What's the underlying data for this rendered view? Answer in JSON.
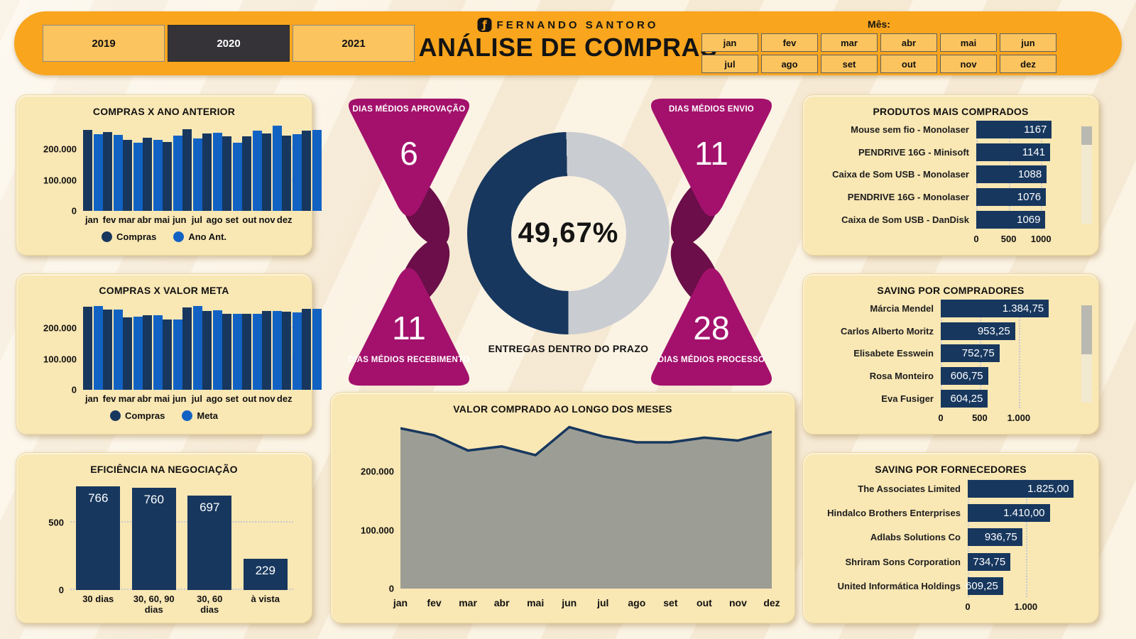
{
  "header": {
    "brand": "FERNANDO SANTORO",
    "brand_icon": "ƒ",
    "title": "ANÁLISE DE COMPRAS",
    "years": [
      {
        "label": "2019",
        "selected": false
      },
      {
        "label": "2020",
        "selected": true
      },
      {
        "label": "2021",
        "selected": false
      }
    ],
    "month_label": "Mês:",
    "months": [
      "jan",
      "fev",
      "mar",
      "abr",
      "mai",
      "jun",
      "jul",
      "ago",
      "set",
      "out",
      "nov",
      "dez"
    ]
  },
  "kpis": {
    "aprovacao": {
      "label": "DIAS MÉDIOS APROVAÇÃO",
      "value": "6"
    },
    "envio": {
      "label": "DIAS MÉDIOS ENVIO",
      "value": "11"
    },
    "recebimento": {
      "label": "DIAS MÉDIOS RECEBIMENTO",
      "value": "11"
    },
    "processo": {
      "label": "DIAS MÉDIOS PROCESSO",
      "value": "28"
    },
    "donut": {
      "value_label": "49,67%",
      "percent": 49.67,
      "caption": "ENTREGAS DENTRO DO PRAZO"
    }
  },
  "colors": {
    "navy": "#17375E",
    "blue": "#1262C4",
    "magenta": "#A3116C",
    "maroon": "#6B0E49",
    "orange": "#F9A51D",
    "button_orange": "#FCC45F",
    "selected_dark": "#353338",
    "panel_bg": "#F9E7B4",
    "page_bg": "#FAF0DD",
    "donut_gray": "#C9CCD1",
    "area_fill": "#9C9D94",
    "grid_dot": "#C5CAD3"
  },
  "chart_data": [
    {
      "el": "chart-ano-anterior",
      "type": "bar",
      "title": "COMPRAS X ANO ANTERIOR",
      "categories": [
        "jan",
        "fev",
        "mar",
        "abr",
        "mai",
        "jun",
        "jul",
        "ago",
        "set",
        "out",
        "nov",
        "dez"
      ],
      "series": [
        {
          "name": "Compras",
          "color": "navy",
          "values": [
            263000,
            256000,
            230000,
            237000,
            223000,
            265000,
            250000,
            241000,
            241000,
            250000,
            244000,
            259000
          ]
        },
        {
          "name": "Ano Ant.",
          "color": "blue",
          "values": [
            248000,
            245000,
            220000,
            230000,
            243000,
            235000,
            253000,
            220000,
            260000,
            275000,
            249000,
            262000
          ]
        }
      ],
      "ylim": [
        0,
        285000
      ],
      "grid": true,
      "legend_position": "bottom",
      "yticks": [
        {
          "v": 0,
          "label": "0"
        },
        {
          "v": 100000,
          "label": "100.000"
        },
        {
          "v": 200000,
          "label": "200.000"
        }
      ]
    },
    {
      "el": "chart-valor-meta",
      "type": "bar",
      "title": "COMPRAS X VALOR META",
      "categories": [
        "jan",
        "fev",
        "mar",
        "abr",
        "mai",
        "jun",
        "jul",
        "ago",
        "set",
        "out",
        "nov",
        "dez"
      ],
      "series": [
        {
          "name": "Compras",
          "color": "navy",
          "values": [
            270000,
            259000,
            235000,
            241000,
            227000,
            267000,
            255000,
            247000,
            246000,
            256000,
            252000,
            263000
          ]
        },
        {
          "name": "Meta",
          "color": "blue",
          "values": [
            272000,
            260000,
            237000,
            242000,
            227000,
            271000,
            257000,
            247000,
            246000,
            256000,
            250000,
            263000
          ]
        }
      ],
      "ylim": [
        0,
        285000
      ],
      "grid": true,
      "legend_position": "bottom",
      "yticks": [
        {
          "v": 0,
          "label": "0"
        },
        {
          "v": 100000,
          "label": "100.000"
        },
        {
          "v": 200000,
          "label": "200.000"
        }
      ]
    },
    {
      "el": "chart-eficiencia",
      "type": "bar",
      "title": "EFICIÊNCIA NA NEGOCIAÇÃO",
      "categories": [
        "30 dias",
        "30, 60, 90 dias",
        "30, 60 dias",
        "à vista"
      ],
      "series": [
        {
          "name": "Eficiência",
          "color": "navy",
          "values": [
            766,
            760,
            697,
            229
          ]
        }
      ],
      "show_values": true,
      "ylim": [
        0,
        810
      ],
      "grid": true,
      "yticks": [
        {
          "v": 0,
          "label": "0"
        },
        {
          "v": 500,
          "label": "500"
        }
      ]
    },
    {
      "el": "chart-valor-meses",
      "type": "area",
      "title": "VALOR COMPRADO AO LONGO DOS MESES",
      "x": [
        "jan",
        "fev",
        "mar",
        "abr",
        "mai",
        "jun",
        "jul",
        "ago",
        "set",
        "out",
        "nov",
        "dez"
      ],
      "values": [
        274000,
        262000,
        236000,
        243000,
        228000,
        276000,
        260000,
        250000,
        250000,
        258000,
        253000,
        268000
      ],
      "ylim": [
        0,
        290000
      ],
      "grid": true,
      "yticks": [
        {
          "v": 0,
          "label": "0"
        },
        {
          "v": 100000,
          "label": "100.000"
        },
        {
          "v": 200000,
          "label": "200.000"
        }
      ]
    },
    {
      "el": "chart-produtos",
      "type": "hbar",
      "title": "PRODUTOS MAIS COMPRADOS",
      "rows": [
        {
          "label": "Mouse sem fio - Monolaser",
          "value": 1167,
          "value_label": "1167"
        },
        {
          "label": "PENDRIVE 16G - Minisoft",
          "value": 1141,
          "value_label": "1141"
        },
        {
          "label": "Caixa de Som USB - Monolaser",
          "value": 1088,
          "value_label": "1088"
        },
        {
          "label": "PENDRIVE 16G - Monolaser",
          "value": 1076,
          "value_label": "1076"
        },
        {
          "label": "Caixa de Som USB - DanDisk",
          "value": 1069,
          "value_label": "1069"
        }
      ],
      "xmax": 1250,
      "ticks": [
        {
          "v": 0,
          "label": "0"
        },
        {
          "v": 500,
          "label": "500"
        },
        {
          "v": 1000,
          "label": "1000"
        }
      ]
    },
    {
      "el": "chart-compradores",
      "type": "hbar",
      "title": "SAVING POR COMPRADORES",
      "rows": [
        {
          "label": "Márcia Mendel",
          "value": 1384.75,
          "value_label": "1.384,75"
        },
        {
          "label": "Carlos Alberto Moritz",
          "value": 953.25,
          "value_label": "953,25"
        },
        {
          "label": "Elisabete Esswein",
          "value": 752.75,
          "value_label": "752,75"
        },
        {
          "label": "Rosa Monteiro",
          "value": 606.75,
          "value_label": "606,75"
        },
        {
          "label": "Eva Fusiger",
          "value": 604.25,
          "value_label": "604,25"
        }
      ],
      "xmax": 1420,
      "ticks": [
        {
          "v": 0,
          "label": "0"
        },
        {
          "v": 500,
          "label": "500"
        },
        {
          "v": 1000,
          "label": "1.000"
        }
      ]
    },
    {
      "el": "chart-fornecedores",
      "type": "hbar",
      "title": "SAVING POR FORNECEDORES",
      "rows": [
        {
          "label": "The Associates Limited",
          "value": 1825,
          "value_label": "1.825,00"
        },
        {
          "label": "Hindalco Brothers Enterprises",
          "value": 1410,
          "value_label": "1.410,00"
        },
        {
          "label": "Adlabs Solutions Co",
          "value": 936.75,
          "value_label": "936,75"
        },
        {
          "label": "Shriram Sons Corporation",
          "value": 734.75,
          "value_label": "734,75"
        },
        {
          "label": "United Informática Holdings",
          "value": 609.25,
          "value_label": "609,25"
        }
      ],
      "xmax": 1880,
      "ticks": [
        {
          "v": 0,
          "label": "0"
        },
        {
          "v": 1000,
          "label": "1.000"
        }
      ]
    }
  ]
}
